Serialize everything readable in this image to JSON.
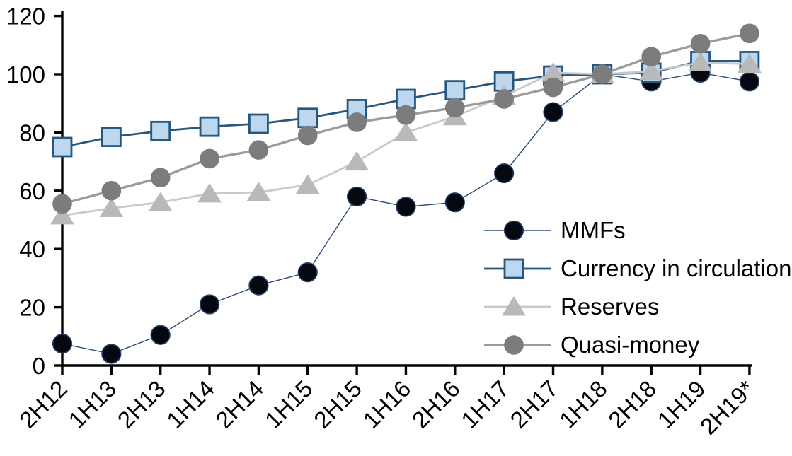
{
  "chart_data": {
    "type": "line",
    "categories": [
      "2H12",
      "1H13",
      "2H13",
      "1H14",
      "2H14",
      "1H15",
      "2H15",
      "1H16",
      "2H16",
      "1H17",
      "2H17",
      "1H18",
      "2H18",
      "1H19",
      "2H19*"
    ],
    "series": [
      {
        "id": "mmfs",
        "name": "MMFs",
        "marker": "circle",
        "marker_color": "#06080F",
        "marker_stroke": "#24426E",
        "marker_stroke_width": 1.6,
        "line_color": "#2E4A78",
        "line_width": 1.4,
        "values": [
          7.5,
          4,
          10.5,
          21,
          27.5,
          32,
          58,
          54.5,
          56,
          66,
          87,
          100,
          97.5,
          100.5,
          97.5
        ]
      },
      {
        "id": "currency-in-circulation",
        "name": "Currency in circulation",
        "marker": "square",
        "marker_color": "#BDD7EE",
        "marker_stroke": "#27567F",
        "marker_stroke_width": 2.8,
        "line_color": "#27567F",
        "line_width": 2.8,
        "values": [
          75,
          78.5,
          80.5,
          82,
          83,
          85,
          88,
          91.5,
          94.5,
          97.5,
          99.5,
          100,
          100.5,
          104.5,
          104.5
        ]
      },
      {
        "id": "reserves",
        "name": "Reserves",
        "marker": "triangle",
        "marker_color": "#B9B9B9",
        "marker_stroke": "#B9B9B9",
        "marker_stroke_width": 1,
        "line_color": "#C9C9C9",
        "line_width": 2.8,
        "values": [
          51.5,
          54,
          56,
          59,
          59.5,
          62,
          70,
          80,
          85.5,
          92.5,
          100.5,
          100,
          101,
          104,
          103.5
        ]
      },
      {
        "id": "quasi-money",
        "name": "Quasi-money",
        "marker": "circle",
        "marker_color": "#7C7C7C",
        "marker_stroke": "#7C7C7C",
        "marker_stroke_width": 1,
        "line_color": "#9B9B9B",
        "line_width": 3.4,
        "values": [
          55.5,
          60,
          64.5,
          71,
          74,
          79,
          83.5,
          86,
          88.5,
          91.5,
          95.5,
          100,
          106,
          110.5,
          114
        ]
      }
    ],
    "y_ticks": [
      0,
      20,
      40,
      60,
      80,
      100,
      120
    ],
    "ylim": [
      0,
      120
    ],
    "x_label_rotation": 45,
    "grid": false,
    "legend_position": "inside-right",
    "axis_color": "#000000",
    "background_color": "#FFFFFF"
  }
}
